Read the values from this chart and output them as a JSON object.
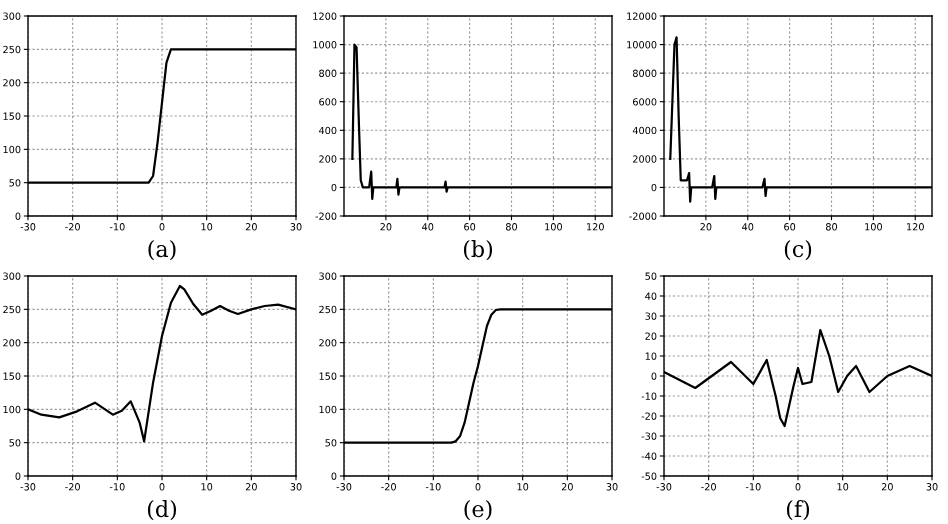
{
  "chart_data": [
    {
      "type": "line",
      "title": "(a)",
      "x": [
        -30,
        -3,
        -2,
        -1,
        0,
        1,
        2,
        3,
        30
      ],
      "values": [
        50,
        50,
        60,
        110,
        170,
        230,
        250,
        250,
        250
      ],
      "color": "#000000",
      "xlim": [
        -30,
        30
      ],
      "ylim": [
        0,
        300
      ],
      "xticks": [
        -30,
        -20,
        -10,
        0,
        10,
        20,
        30
      ],
      "yticks": [
        0,
        50,
        100,
        150,
        200,
        250,
        300
      ],
      "grid": true
    },
    {
      "type": "line",
      "title": "(b)",
      "x": [
        4,
        5,
        6,
        7,
        8,
        9,
        12,
        13,
        13.5,
        14,
        25,
        25.5,
        26,
        26.5,
        48,
        48.5,
        49,
        49.5,
        128
      ],
      "values": [
        200,
        1000,
        980,
        500,
        50,
        0,
        0,
        110,
        -80,
        0,
        0,
        60,
        -50,
        0,
        0,
        40,
        -30,
        0,
        0
      ],
      "color": "#000000",
      "xlim": [
        0,
        128
      ],
      "ylim": [
        -200,
        1200
      ],
      "xticks": [
        20,
        40,
        60,
        80,
        100,
        120
      ],
      "yticks": [
        -200,
        0,
        200,
        400,
        600,
        800,
        1000,
        1200
      ],
      "grid": true
    },
    {
      "type": "line",
      "title": "(c)",
      "x": [
        3,
        5,
        6,
        7,
        8,
        11,
        12,
        12.5,
        13,
        23,
        24,
        24.5,
        25,
        47,
        48,
        48.5,
        49,
        128
      ],
      "values": [
        2000,
        10000,
        10500,
        5000,
        500,
        500,
        1000,
        -1000,
        0,
        0,
        800,
        -800,
        0,
        0,
        600,
        -600,
        0,
        0
      ],
      "color": "#000000",
      "xlim": [
        0,
        128
      ],
      "ylim": [
        -2000,
        12000
      ],
      "xticks": [
        20,
        40,
        60,
        80,
        100,
        120
      ],
      "yticks": [
        -2000,
        0,
        2000,
        4000,
        6000,
        8000,
        10000,
        12000
      ],
      "grid": true
    },
    {
      "type": "line",
      "title": "(d)",
      "x": [
        -30,
        -27,
        -23,
        -19,
        -15,
        -11,
        -9,
        -7,
        -5,
        -4,
        -2,
        0,
        2,
        4,
        5,
        7,
        9,
        11,
        13,
        15,
        17,
        20,
        23,
        26,
        30
      ],
      "values": [
        100,
        92,
        88,
        97,
        110,
        92,
        98,
        112,
        80,
        52,
        140,
        210,
        260,
        285,
        280,
        258,
        242,
        248,
        255,
        248,
        243,
        250,
        255,
        257,
        250
      ],
      "color": "#000000",
      "xlim": [
        -30,
        30
      ],
      "ylim": [
        0,
        300
      ],
      "xticks": [
        -30,
        -20,
        -10,
        0,
        10,
        20,
        30
      ],
      "yticks": [
        0,
        50,
        100,
        150,
        200,
        250,
        300
      ],
      "grid": true
    },
    {
      "type": "line",
      "title": "(e)",
      "x": [
        -30,
        -6,
        -5,
        -4,
        -3,
        -2,
        -1,
        0,
        1,
        2,
        3,
        4,
        5,
        30
      ],
      "values": [
        50,
        50,
        52,
        60,
        80,
        110,
        140,
        165,
        195,
        225,
        242,
        249,
        250,
        250
      ],
      "color": "#000000",
      "xlim": [
        -30,
        30
      ],
      "ylim": [
        0,
        300
      ],
      "xticks": [
        -30,
        -20,
        -10,
        0,
        10,
        20,
        30
      ],
      "yticks": [
        0,
        50,
        100,
        150,
        200,
        250,
        300
      ],
      "grid": true
    },
    {
      "type": "line",
      "title": "(f)",
      "x": [
        -30,
        -23,
        -15,
        -10,
        -7,
        -5,
        -4,
        -3,
        -1,
        0,
        1,
        3,
        5,
        7,
        9,
        11,
        13,
        16,
        20,
        25,
        30
      ],
      "values": [
        2,
        -6,
        7,
        -4,
        8,
        -10,
        -21,
        -25,
        -5,
        4,
        -4,
        -3,
        23,
        10,
        -8,
        0,
        5,
        -8,
        0,
        5,
        0
      ],
      "color": "#000000",
      "xlim": [
        -30,
        30
      ],
      "ylim": [
        -50,
        50
      ],
      "xticks": [
        -30,
        -20,
        -10,
        0,
        10,
        20,
        30
      ],
      "yticks": [
        -50,
        -40,
        -30,
        -20,
        -10,
        0,
        10,
        20,
        30,
        40,
        50
      ],
      "grid": true
    }
  ]
}
